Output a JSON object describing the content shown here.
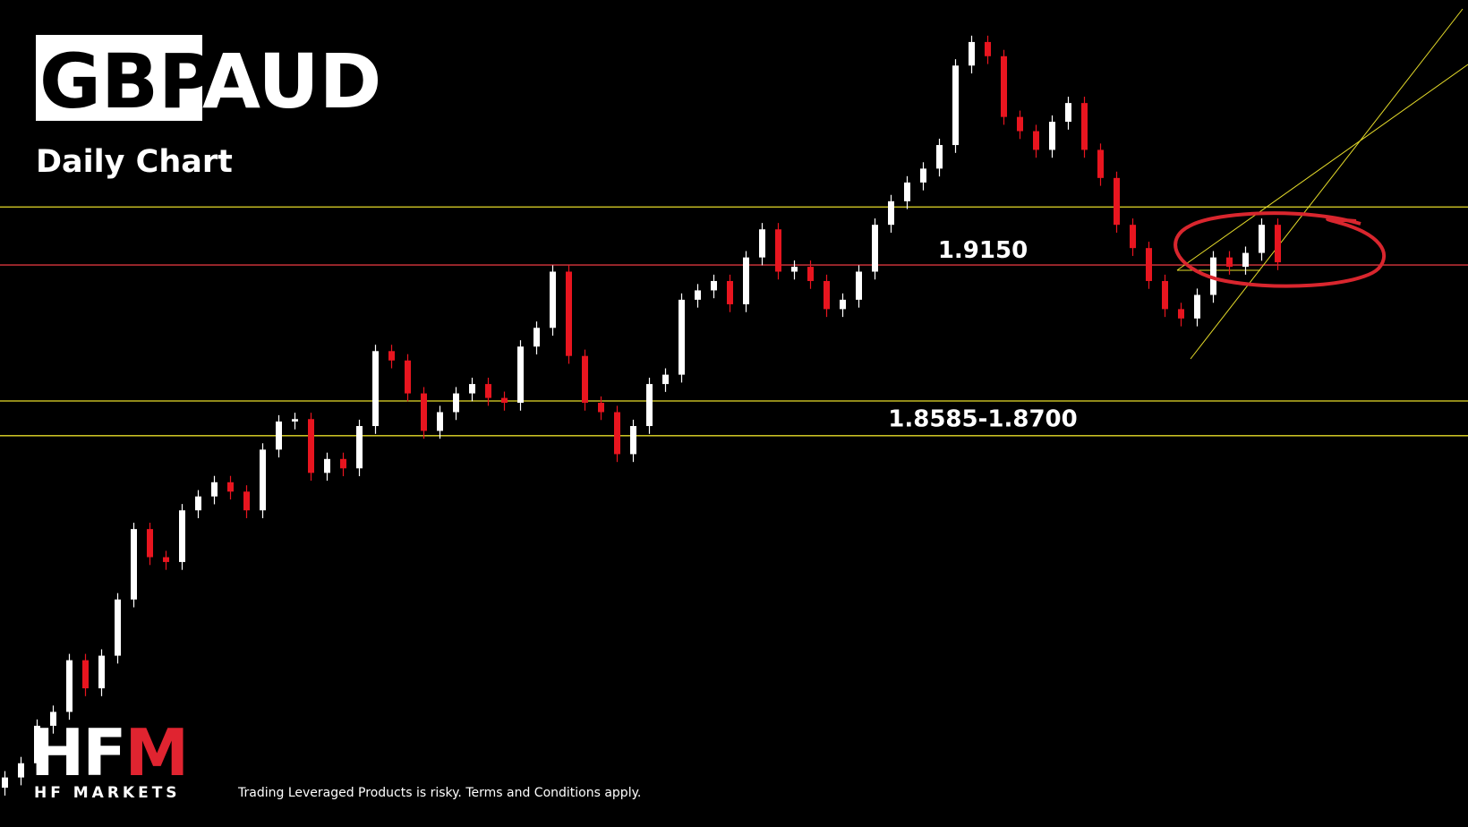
{
  "chart_data": {
    "type": "candlestick",
    "title": [
      "GBP",
      "AUD"
    ],
    "subtitle": "Daily Chart",
    "ylim": [
      1.729,
      2.0027
    ],
    "up_color": "#ffffff",
    "down_color": "#e8151f",
    "open": [
      1.742,
      1.7454,
      1.7501,
      1.7625,
      1.7671,
      1.7842,
      1.7749,
      1.7857,
      1.8043,
      1.8276,
      1.8183,
      1.8167,
      1.8338,
      1.8384,
      1.8431,
      1.84,
      1.8338,
      1.8539,
      1.8632,
      1.864,
      1.8462,
      1.8508,
      1.8477,
      1.8617,
      1.8865,
      1.8834,
      1.8725,
      1.8601,
      1.8663,
      1.8725,
      1.8756,
      1.871,
      1.8694,
      1.888,
      1.8942,
      1.9128,
      1.8849,
      1.8694,
      1.8663,
      1.8524,
      1.8617,
      1.8756,
      1.8787,
      1.9035,
      1.9066,
      1.9097,
      1.902,
      1.9175,
      1.9268,
      1.9128,
      1.9144,
      1.9097,
      1.9004,
      1.9035,
      1.9128,
      1.9283,
      1.9361,
      1.9423,
      1.9469,
      1.9547,
      1.981,
      1.9888,
      1.9841,
      1.964,
      1.9593,
      1.9531,
      1.9624,
      1.9686,
      1.9531,
      1.9438,
      1.9283,
      1.9206,
      1.9097,
      1.9004,
      1.8973,
      1.9051,
      1.9175,
      1.9144,
      1.919,
      1.9283
    ],
    "high": [
      1.7475,
      1.7522,
      1.7646,
      1.7692,
      1.7863,
      1.7863,
      1.7878,
      1.8064,
      1.8297,
      1.8297,
      1.8204,
      1.8359,
      1.8405,
      1.8452,
      1.8452,
      1.8421,
      1.856,
      1.8653,
      1.8661,
      1.8661,
      1.8529,
      1.8529,
      1.8638,
      1.8886,
      1.8886,
      1.8855,
      1.8746,
      1.8684,
      1.8746,
      1.8777,
      1.8777,
      1.8731,
      1.8901,
      1.8963,
      1.9149,
      1.9149,
      1.887,
      1.8715,
      1.8684,
      1.8638,
      1.8777,
      1.8808,
      1.9056,
      1.9087,
      1.9118,
      1.9118,
      1.9196,
      1.9289,
      1.9289,
      1.9165,
      1.9165,
      1.9118,
      1.9056,
      1.9149,
      1.9304,
      1.9382,
      1.9444,
      1.949,
      1.9568,
      1.9831,
      1.9909,
      1.9909,
      1.9862,
      1.9661,
      1.9614,
      1.9645,
      1.9707,
      1.9707,
      1.9552,
      1.9459,
      1.9304,
      1.9227,
      1.9118,
      1.9025,
      1.9072,
      1.9196,
      1.9196,
      1.9211,
      1.9304,
      1.9304
    ],
    "low": [
      1.7394,
      1.7428,
      1.7475,
      1.7599,
      1.7645,
      1.7723,
      1.7723,
      1.7831,
      1.8017,
      1.8157,
      1.8141,
      1.8141,
      1.8312,
      1.8358,
      1.8374,
      1.8312,
      1.8312,
      1.8513,
      1.8606,
      1.8436,
      1.8436,
      1.8451,
      1.8451,
      1.8591,
      1.8808,
      1.8699,
      1.8575,
      1.8575,
      1.8637,
      1.8699,
      1.8684,
      1.8668,
      1.8668,
      1.8854,
      1.8916,
      1.8823,
      1.8668,
      1.8637,
      1.8498,
      1.8498,
      1.8591,
      1.873,
      1.8761,
      1.9009,
      1.904,
      1.8994,
      1.8994,
      1.9149,
      1.9102,
      1.9102,
      1.9071,
      1.8978,
      1.8978,
      1.9009,
      1.9102,
      1.9257,
      1.9335,
      1.9397,
      1.9443,
      1.9521,
      1.9784,
      1.9815,
      1.9614,
      1.9567,
      1.9505,
      1.9505,
      1.9598,
      1.9505,
      1.9412,
      1.9257,
      1.918,
      1.9071,
      1.8978,
      1.8947,
      1.8947,
      1.9025,
      1.9118,
      1.9118,
      1.9164,
      1.9133
    ],
    "close": [
      1.7454,
      1.7501,
      1.7625,
      1.7671,
      1.7842,
      1.7749,
      1.7857,
      1.8043,
      1.8276,
      1.8183,
      1.8167,
      1.8338,
      1.8384,
      1.8431,
      1.84,
      1.8338,
      1.8539,
      1.8632,
      1.864,
      1.8462,
      1.8508,
      1.8477,
      1.8617,
      1.8865,
      1.8834,
      1.8725,
      1.8601,
      1.8663,
      1.8725,
      1.8756,
      1.871,
      1.8694,
      1.888,
      1.8942,
      1.9128,
      1.8849,
      1.8694,
      1.8663,
      1.8524,
      1.8617,
      1.8756,
      1.8787,
      1.9035,
      1.9066,
      1.9097,
      1.902,
      1.9175,
      1.9268,
      1.9128,
      1.9144,
      1.9097,
      1.9004,
      1.9035,
      1.9128,
      1.9283,
      1.9361,
      1.9423,
      1.9469,
      1.9547,
      1.981,
      1.9888,
      1.9841,
      1.964,
      1.9593,
      1.9531,
      1.9624,
      1.9686,
      1.9531,
      1.9438,
      1.9283,
      1.9206,
      1.9097,
      1.9004,
      1.8973,
      1.9051,
      1.9175,
      1.9144,
      1.919,
      1.9283,
      1.9159
    ],
    "levels": [
      {
        "value": 1.9342,
        "color": "#e6dc2a"
      },
      {
        "value": 1.915,
        "label": "1.9150",
        "color": "#d9363e"
      }
    ],
    "zone": {
      "from": 1.8585,
      "to": 1.87,
      "label": "1.8585-1.8700",
      "color": "#e6dc2a"
    }
  },
  "footer": {
    "logo": [
      "HF",
      "M"
    ],
    "brand": "HF MARKETS",
    "disclaimer": "Trading Leveraged Products is risky. Terms and Conditions apply."
  }
}
